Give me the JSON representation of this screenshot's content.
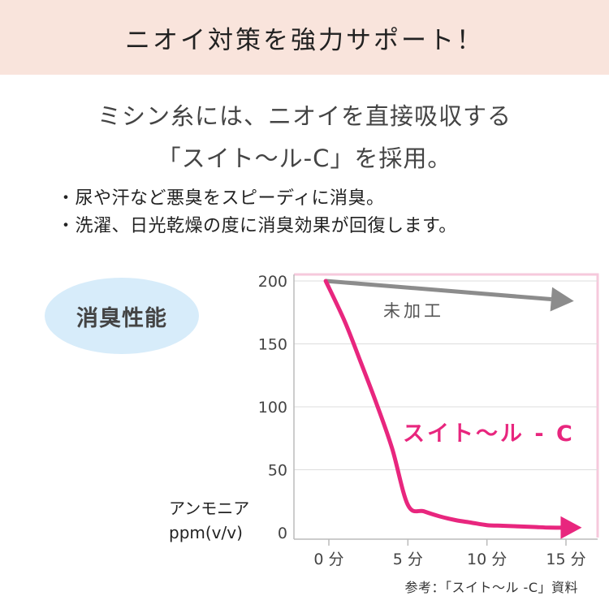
{
  "header": {
    "title": "ニオイ対策を強力サポート！"
  },
  "lead": {
    "line1": "ミシン糸には、ニオイを直接吸収する",
    "line2": "「スイト〜ル-C」を採用。"
  },
  "bullets": [
    "・尿や汗など悪臭をスピーディに消臭。",
    "・洗濯、日光乾燥の度に消臭効果が回復します。"
  ],
  "badge": {
    "label": "消臭性能"
  },
  "colors": {
    "header_bg": "#f9e4dc",
    "badge_bg": "#d7ecfa",
    "untreated": "#8c8c8c",
    "treated": "#e8267e",
    "frame": "#f6c9dc"
  },
  "chart_data": {
    "type": "line",
    "xlabel": "",
    "ylabel": "アンモニア\nppm(v/v)",
    "ylabel_lines": [
      "アンモニア",
      "ppm(v/v)"
    ],
    "x": [
      0,
      5,
      10,
      15
    ],
    "x_tick_labels": [
      "0 分",
      "5 分",
      "10 分",
      "15 分"
    ],
    "y_ticks": [
      0,
      50,
      100,
      150,
      200
    ],
    "y_tick_labels": [
      "0",
      "50",
      "100",
      "150",
      "200"
    ],
    "ylim": [
      0,
      200
    ],
    "xlim": [
      -1,
      16.5
    ],
    "grid": "horizontal",
    "series": [
      {
        "name": "未加工",
        "x": [
          -0.2,
          15.5
        ],
        "values": [
          200,
          184
        ]
      },
      {
        "name": "スイト〜ル - C",
        "x": [
          -0.2,
          1,
          2,
          3,
          4,
          5,
          6,
          7,
          8,
          9,
          10,
          11,
          12,
          13,
          14,
          15,
          16
        ],
        "values": [
          200,
          168,
          136,
          103,
          67,
          22,
          17,
          13,
          10,
          8,
          6,
          5.5,
          5,
          4.5,
          4,
          4,
          4
        ]
      }
    ]
  },
  "source": {
    "text": "参考：「スイト〜ル -C」資料"
  }
}
